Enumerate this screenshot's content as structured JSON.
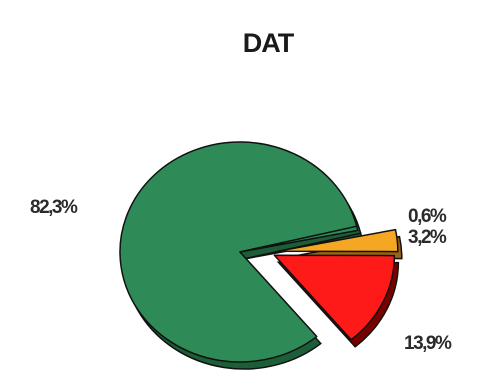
{
  "chart_data": {
    "type": "pie",
    "title": "DAT",
    "slices": [
      {
        "label": "82,3%",
        "value": 82.3,
        "color": "#2e8b57",
        "shade": "#1c5e38",
        "exploded": false
      },
      {
        "label": "0,6%",
        "value": 0.6,
        "color": "#2e8b57",
        "shade": "#1c5e38",
        "exploded": false
      },
      {
        "label": "3,2%",
        "value": 3.2,
        "color": "#f5a623",
        "shade": "#9a6410",
        "exploded": true
      },
      {
        "label": "13,9%",
        "value": 13.9,
        "color": "#ff1a1a",
        "shade": "#7a0000",
        "exploded": true
      }
    ],
    "style": "3d-exploded"
  }
}
